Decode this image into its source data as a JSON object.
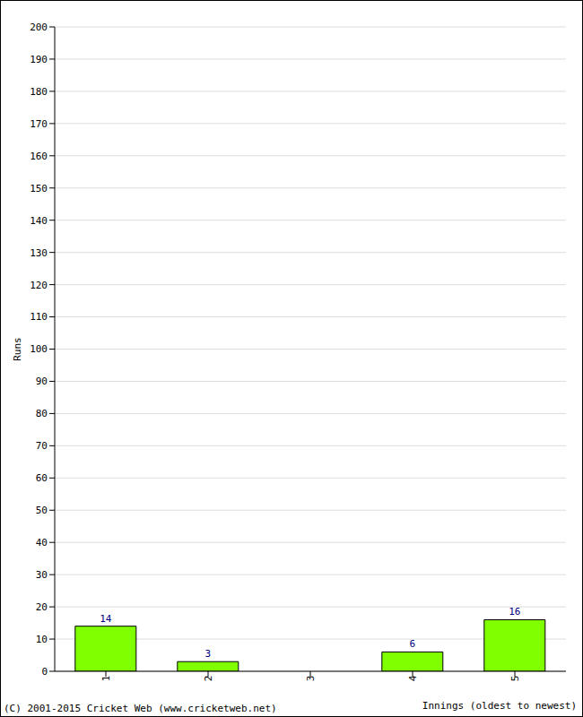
{
  "chart_data": {
    "type": "bar",
    "categories": [
      "1",
      "2",
      "3",
      "4",
      "5"
    ],
    "values": [
      14,
      3,
      0,
      6,
      16
    ],
    "color": "#80ff00",
    "x_label": "Innings (oldest to newest)",
    "y_label": "Runs",
    "ylim": [
      0,
      200
    ],
    "yticks": [
      0,
      10,
      20,
      30,
      40,
      50,
      60,
      70,
      80,
      90,
      100,
      110,
      120,
      130,
      140,
      150,
      160,
      170,
      180,
      190,
      200
    ],
    "grid": true,
    "data_labels": true,
    "annotations": [
      "(C) 2001-2015 Cricket Web (www.cricketweb.net)"
    ]
  }
}
